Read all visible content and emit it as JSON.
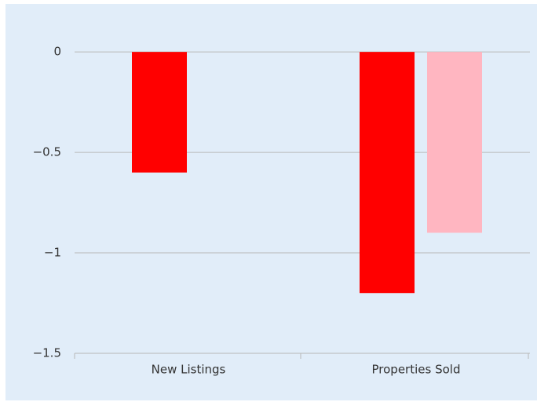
{
  "chart_data": {
    "type": "bar",
    "categories": [
      "New Listings",
      "Properties Sold"
    ],
    "series": [
      {
        "color": "#ff0000",
        "values": [
          -0.6,
          -1.2
        ]
      },
      {
        "color": "#ffb6c1",
        "values": [
          null,
          -0.9
        ]
      }
    ],
    "ylim": [
      -1.5,
      0.2
    ],
    "yticks": [
      0,
      {
        "value": -0.5,
        "label": "−0.5"
      },
      {
        "value": -1,
        "label": "−1"
      },
      {
        "value": -1.5,
        "label": "−1.5"
      }
    ],
    "grid": true
  }
}
